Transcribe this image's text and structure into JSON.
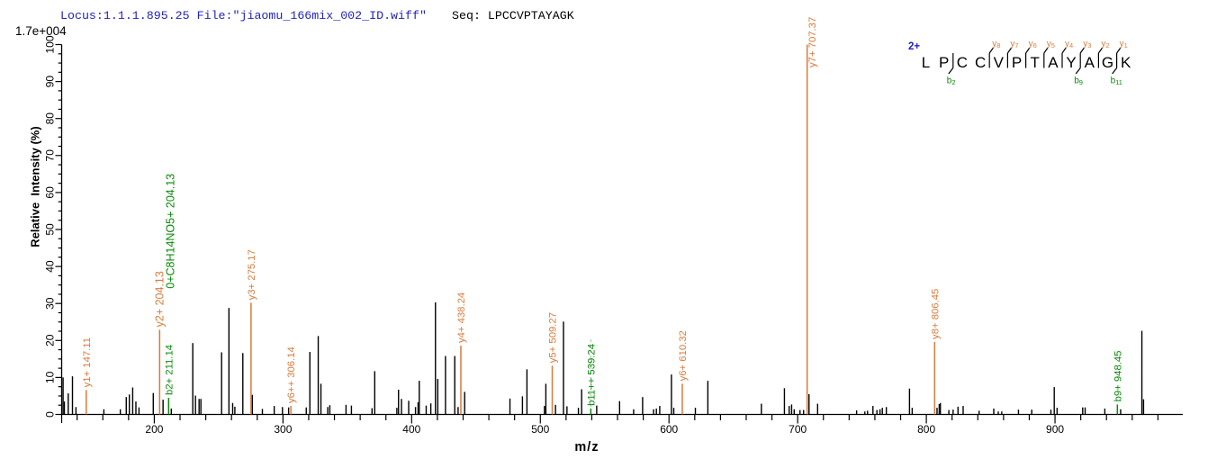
{
  "header": {
    "locus_file": "Locus:1.1.1.895.25 File:\"jiaomu_166mix_002_ID.wiff\"",
    "seq_label": "Seq:",
    "seq_value": "LPCCVPTAYAGK",
    "intensity_scale": "1.7e+004"
  },
  "colors": {
    "header_blue": "#2424bd",
    "y_ion_orange": "#d97b3c",
    "b_ion_green": "#068a06",
    "charge_blue": "#2020cc",
    "axis_black": "#000000",
    "callout_dash": "#b5c7b5"
  },
  "chart_data": {
    "type": "bar",
    "title": "",
    "xlabel": "m/z",
    "ylabel": "Relative  Intensity (%)",
    "xlim": [
      128.0,
      999.3
    ],
    "ylim": [
      0,
      100
    ],
    "grid": false,
    "legend": false,
    "x_major_ticks": {
      "start": 200,
      "step": 100,
      "end": 900
    },
    "x_minor_ticks": {
      "start": 140,
      "step": 20,
      "end": 980
    },
    "y_major_ticks": {
      "start": 0,
      "step": 10,
      "end": 100
    },
    "y_minor_step": 2.5,
    "peaks": [
      [
        129.1,
        10.0
      ],
      [
        130.1,
        3.5
      ],
      [
        133.1,
        5.7
      ],
      [
        136.4,
        10.3
      ],
      [
        139.1,
        2.0
      ],
      [
        160.8,
        1.4
      ],
      [
        173.6,
        1.4
      ],
      [
        178.2,
        4.7
      ],
      [
        180.6,
        5.4
      ],
      [
        183.2,
        7.3
      ],
      [
        185.7,
        3.5
      ],
      [
        188.1,
        1.9
      ],
      [
        199.2,
        5.8
      ],
      [
        206.8,
        4.0
      ],
      [
        213.2,
        1.6
      ],
      [
        229.9,
        19.3
      ],
      [
        232.0,
        5.1
      ],
      [
        234.8,
        4.2
      ],
      [
        236.2,
        4.2
      ],
      [
        252.3,
        16.8
      ],
      [
        258.0,
        28.8
      ],
      [
        260.9,
        3.1
      ],
      [
        262.6,
        2.1
      ],
      [
        268.8,
        16.6
      ],
      [
        276.2,
        5.3
      ],
      [
        284.0,
        1.5
      ],
      [
        293.2,
        2.3
      ],
      [
        299.6,
        2.0
      ],
      [
        304.4,
        1.9
      ],
      [
        318.1,
        1.9
      ],
      [
        320.9,
        16.9
      ],
      [
        327.4,
        21.2
      ],
      [
        329.5,
        8.3
      ],
      [
        334.8,
        2.0
      ],
      [
        336.4,
        2.5
      ],
      [
        349.0,
        2.6
      ],
      [
        353.2,
        2.4
      ],
      [
        369.2,
        1.7
      ],
      [
        371.3,
        11.7
      ],
      [
        388.5,
        1.8
      ],
      [
        389.8,
        6.7
      ],
      [
        392.1,
        4.2
      ],
      [
        397.7,
        3.7
      ],
      [
        403.0,
        2.0
      ],
      [
        405.0,
        3.3
      ],
      [
        405.9,
        9.1
      ],
      [
        411.3,
        2.4
      ],
      [
        414.9,
        3.0
      ],
      [
        418.5,
        30.3
      ],
      [
        420.3,
        9.6
      ],
      [
        426.3,
        15.8
      ],
      [
        433.5,
        15.8
      ],
      [
        436.1,
        2.0
      ],
      [
        441.2,
        6.1
      ],
      [
        476.4,
        4.3
      ],
      [
        486.1,
        4.9
      ],
      [
        489.6,
        12.2
      ],
      [
        503.2,
        2.3
      ],
      [
        504.3,
        8.3
      ],
      [
        511.8,
        2.6
      ],
      [
        518.0,
        25.1
      ],
      [
        520.7,
        2.2
      ],
      [
        529.6,
        1.8
      ],
      [
        532.1,
        6.8
      ],
      [
        543.8,
        2.4
      ],
      [
        561.6,
        3.6
      ],
      [
        572.5,
        1.4
      ],
      [
        579.5,
        4.7
      ],
      [
        588.0,
        1.4
      ],
      [
        590.2,
        1.6
      ],
      [
        592.8,
        2.3
      ],
      [
        601.9,
        10.8
      ],
      [
        603.7,
        1.8
      ],
      [
        620.5,
        1.8
      ],
      [
        630.2,
        9.1
      ],
      [
        671.8,
        2.9
      ],
      [
        689.7,
        7.1
      ],
      [
        693.4,
        2.3
      ],
      [
        695.3,
        2.7
      ],
      [
        697.3,
        1.4
      ],
      [
        701.8,
        1.2
      ],
      [
        704.6,
        1.2
      ],
      [
        708.8,
        5.5
      ],
      [
        715.5,
        2.9
      ],
      [
        745.8,
        1.1
      ],
      [
        752.2,
        0.8
      ],
      [
        754.3,
        1.0
      ],
      [
        758.5,
        2.3
      ],
      [
        761.6,
        1.2
      ],
      [
        764.0,
        1.4
      ],
      [
        765.8,
        1.8
      ],
      [
        768.9,
        2.0
      ],
      [
        786.9,
        7.0
      ],
      [
        789.0,
        1.8
      ],
      [
        808.3,
        1.8
      ],
      [
        810.0,
        2.8
      ],
      [
        810.9,
        3.1
      ],
      [
        817.5,
        1.2
      ],
      [
        820.8,
        1.3
      ],
      [
        824.6,
        2.1
      ],
      [
        828.6,
        2.3
      ],
      [
        841.0,
        1.0
      ],
      [
        852.4,
        1.6
      ],
      [
        855.9,
        0.8
      ],
      [
        858.6,
        0.8
      ],
      [
        871.6,
        1.3
      ],
      [
        881.9,
        1.3
      ],
      [
        896.8,
        1.3
      ],
      [
        899.4,
        7.4
      ],
      [
        901.6,
        1.8
      ],
      [
        921.5,
        1.9
      ],
      [
        923.4,
        1.9
      ],
      [
        938.7,
        1.6
      ],
      [
        951.0,
        1.4
      ],
      [
        967.5,
        22.6
      ],
      [
        968.8,
        4.1
      ]
    ],
    "annotations": [
      {
        "label": "y1+ 147.11",
        "mz": 147.11,
        "intensity": 6.6,
        "ion": "y"
      },
      {
        "label": "y2+ 204.13",
        "mz": 204.13,
        "intensity": 22.9,
        "ion": "y",
        "label_size": 12.5
      },
      {
        "label": "0+C8H14NO5+  204.13",
        "mz": 204.13,
        "intensity": 22.9,
        "ion": "b",
        "label_dx": 12,
        "label_bottom_pct": 34.0,
        "label_size": 12.5,
        "no_line": true
      },
      {
        "label": "b2+ 211.14",
        "mz": 211.14,
        "intensity": 4.5,
        "ion": "b"
      },
      {
        "label": "y3+ 275.17",
        "mz": 275.17,
        "intensity": 30.2,
        "ion": "y"
      },
      {
        "label": "y6++ 306.14",
        "mz": 306.14,
        "intensity": 2.3,
        "ion": "y"
      },
      {
        "label": "y4+ 438.24",
        "mz": 438.24,
        "intensity": 18.6,
        "ion": "y"
      },
      {
        "label": "y5+ 509.27",
        "mz": 509.27,
        "intensity": 13.2,
        "ion": "y"
      },
      {
        "label": "b11++ 539.24",
        "mz": 539.24,
        "intensity": 1.6,
        "ion": "b",
        "callout_bottom_pct": 20.8
      },
      {
        "label": "y6+ 610.32",
        "mz": 610.32,
        "intensity": 8.3,
        "ion": "y"
      },
      {
        "label": "y7+ 707.37",
        "mz": 707.37,
        "intensity": 100,
        "ion": "y",
        "side": "right",
        "label_bottom_pct": 93.8
      },
      {
        "label": "y8+ 806.45",
        "mz": 806.45,
        "intensity": 19.6,
        "ion": "y"
      },
      {
        "label": "b9+ 948.45",
        "mz": 948.45,
        "intensity": 2.7,
        "ion": "b"
      }
    ]
  },
  "peptide_panel": {
    "charge": "2+",
    "residues": [
      "L",
      "P",
      "C",
      "C",
      "V",
      "P",
      "T",
      "A",
      "Y",
      "A",
      "G",
      "K"
    ],
    "y_ions": [
      {
        "base": "y",
        "sub": "8",
        "after": 4
      },
      {
        "base": "y",
        "sub": "7",
        "after": 5
      },
      {
        "base": "y",
        "sub": "6",
        "after": 6
      },
      {
        "base": "y",
        "sub": "5",
        "after": 7
      },
      {
        "base": "y",
        "sub": "4",
        "after": 8
      },
      {
        "base": "y",
        "sub": "3",
        "after": 9
      },
      {
        "base": "y",
        "sub": "2",
        "after": 10
      },
      {
        "base": "y",
        "sub": "1",
        "after": 11
      }
    ],
    "b_ions": [
      {
        "base": "b",
        "sub": "2",
        "after": 2
      },
      {
        "base": "b",
        "sub": "9",
        "after": 9
      },
      {
        "base": "b",
        "sub": "11",
        "after": 11
      }
    ]
  }
}
